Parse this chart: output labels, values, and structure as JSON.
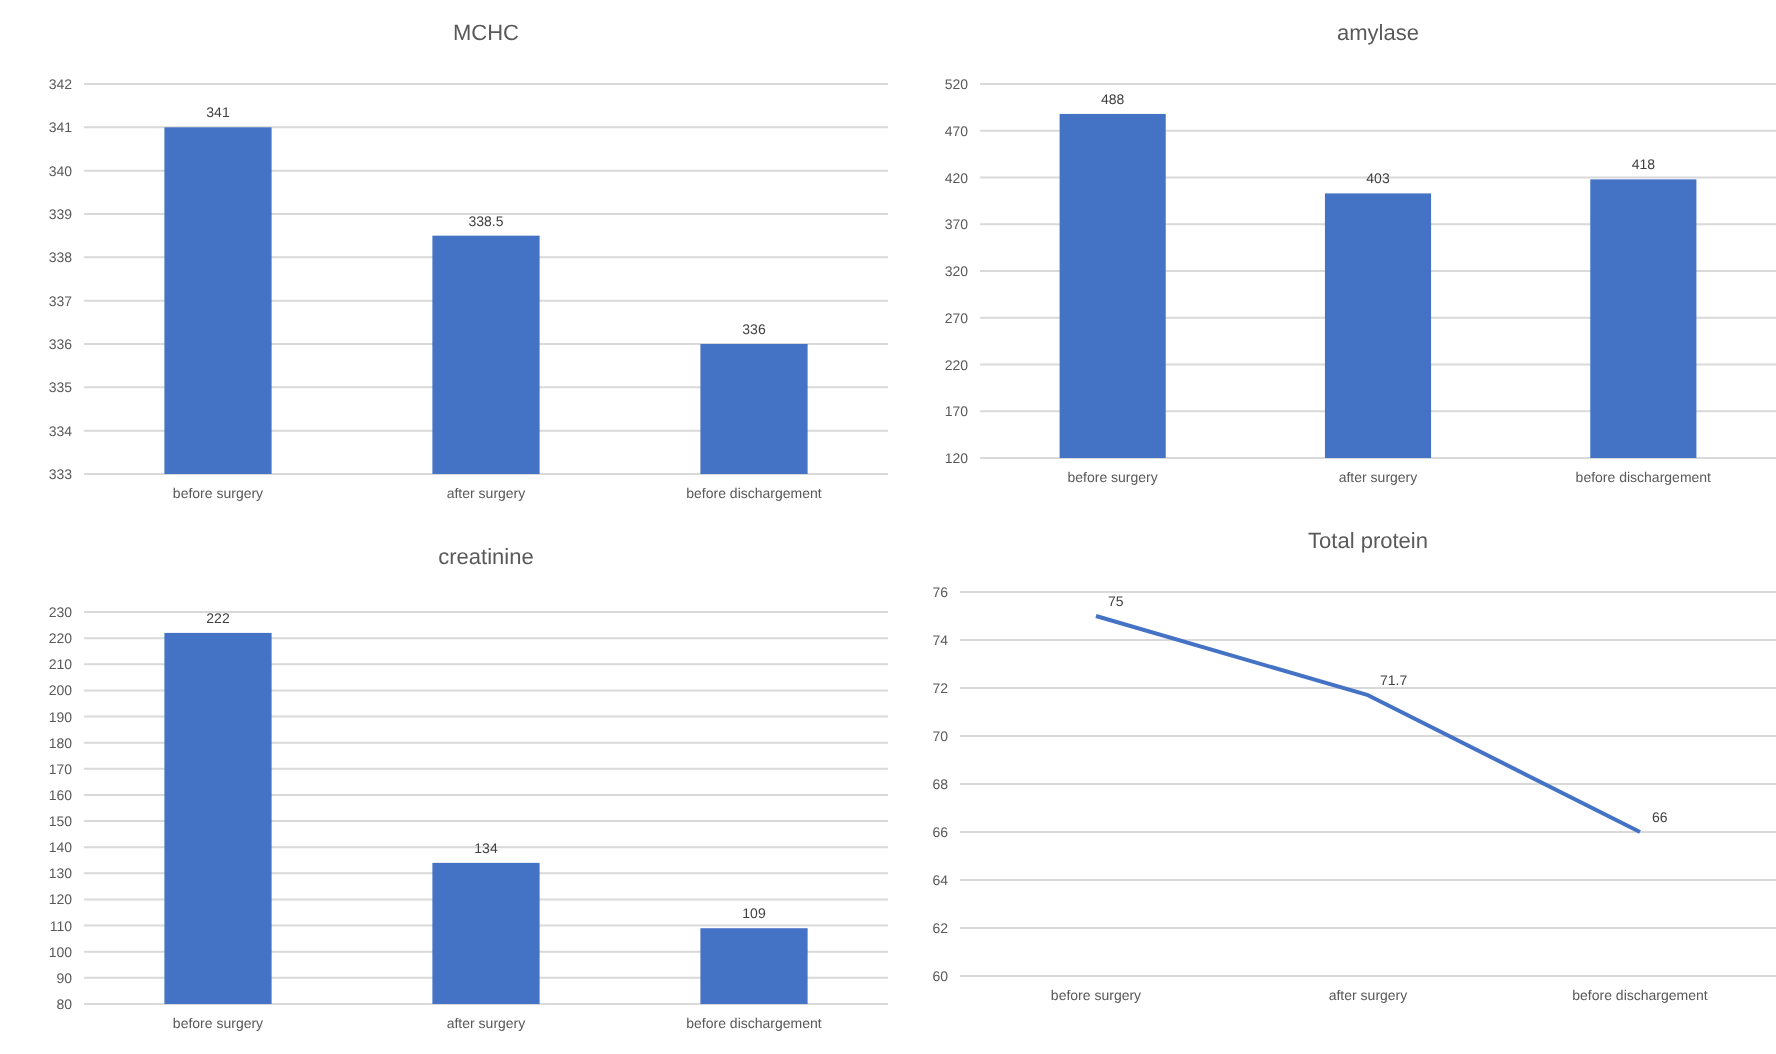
{
  "chart_data": [
    {
      "type": "bar",
      "title": "MCHC",
      "categories": [
        "before surgery",
        "after surgery",
        "before dischargement"
      ],
      "series": [
        {
          "color": "#4472c4",
          "values": [
            341,
            338.5,
            336
          ]
        }
      ],
      "ylim": [
        333,
        342
      ],
      "yticks": [
        333,
        334,
        335,
        336,
        337,
        338,
        339,
        340,
        341,
        342
      ],
      "grid": "y",
      "data_labels": true
    },
    {
      "type": "bar",
      "title": "amylase",
      "categories": [
        "before surgery",
        "after surgery",
        "before dischargement"
      ],
      "series": [
        {
          "color": "#4472c4",
          "values": [
            488,
            403,
            418
          ]
        }
      ],
      "ylim": [
        120,
        520
      ],
      "yticks": [
        120,
        170,
        220,
        270,
        320,
        370,
        420,
        470,
        520
      ],
      "grid": "y",
      "data_labels": true
    },
    {
      "type": "bar",
      "title": "creatinine",
      "categories": [
        "before surgery",
        "after surgery",
        "before dischargement"
      ],
      "series": [
        {
          "color": "#4472c4",
          "values": [
            222,
            134,
            109
          ]
        }
      ],
      "ylim": [
        80,
        230
      ],
      "yticks": [
        80,
        90,
        100,
        110,
        120,
        130,
        140,
        150,
        160,
        170,
        180,
        190,
        200,
        210,
        220,
        230
      ],
      "grid": "y",
      "data_labels": true
    },
    {
      "type": "line",
      "title": "Total protein",
      "categories": [
        "before surgery",
        "after surgery",
        "before dischargement"
      ],
      "series": [
        {
          "color": "#4472c4",
          "values": [
            75,
            71.7,
            66
          ]
        }
      ],
      "ylim": [
        60,
        76
      ],
      "yticks": [
        60,
        62,
        64,
        66,
        68,
        70,
        72,
        74,
        76
      ],
      "grid": "y",
      "data_labels": true,
      "marker": "none"
    }
  ]
}
